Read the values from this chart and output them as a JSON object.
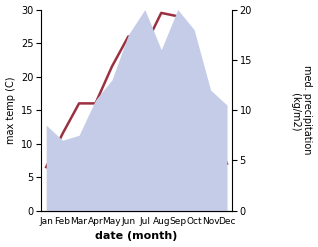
{
  "months": [
    "Jan",
    "Feb",
    "Mar",
    "Apr",
    "May",
    "Jun",
    "Jul",
    "Aug",
    "Sep",
    "Oct",
    "Nov",
    "Dec"
  ],
  "temp": [
    6.5,
    11.5,
    16.0,
    16.0,
    21.5,
    26.0,
    24.5,
    29.5,
    29.0,
    19.0,
    13.0,
    7.0
  ],
  "precip": [
    8.5,
    7.0,
    7.5,
    11.0,
    13.0,
    17.5,
    20.0,
    16.0,
    20.0,
    18.0,
    12.0,
    10.5
  ],
  "temp_color": "#9b3040",
  "precip_fill_color": "#c5cce8",
  "temp_ylim": [
    0,
    30
  ],
  "precip_ylim": [
    0,
    20
  ],
  "temp_ylabel": "max temp (C)",
  "precip_ylabel": "med. precipitation\n (kg/m2)",
  "xlabel": "date (month)",
  "temp_yticks": [
    0,
    5,
    10,
    15,
    20,
    25,
    30
  ],
  "precip_yticks": [
    0,
    5,
    10,
    15,
    20
  ],
  "background_color": "#ffffff",
  "line_width": 1.8,
  "figwidth": 3.18,
  "figheight": 2.47,
  "dpi": 100
}
